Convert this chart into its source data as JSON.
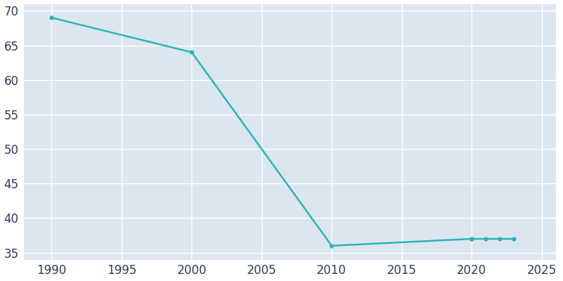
{
  "years": [
    1990,
    2000,
    2010,
    2020,
    2021,
    2022,
    2023
  ],
  "population": [
    69,
    64,
    36,
    37,
    37,
    37,
    37
  ],
  "line_color": "#2ab5b5",
  "marker": "o",
  "marker_size": 3.5,
  "line_width": 1.8,
  "fig_bg_color": "#ffffff",
  "plot_bg_color": "#dce6f0",
  "grid_color": "#ffffff",
  "xlim": [
    1988,
    2026
  ],
  "ylim": [
    34,
    71
  ],
  "xticks": [
    1990,
    1995,
    2000,
    2005,
    2010,
    2015,
    2020,
    2025
  ],
  "yticks": [
    35,
    40,
    45,
    50,
    55,
    60,
    65,
    70
  ],
  "tick_color": "#2e3a59",
  "tick_fontsize": 12
}
